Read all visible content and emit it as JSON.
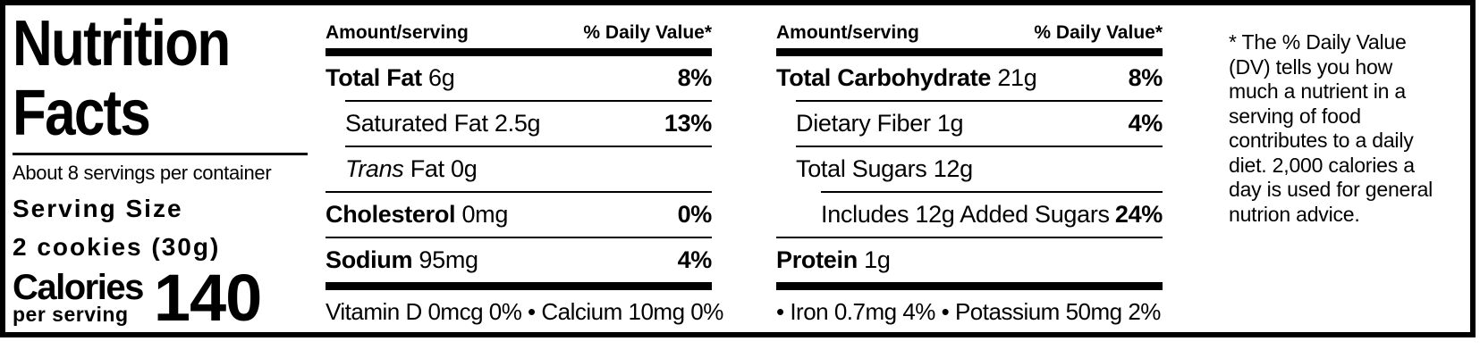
{
  "title": {
    "line1": "Nutrition",
    "line2": "Facts"
  },
  "left": {
    "servings_per_container": "About 8 servings per container",
    "serving_size_label": "Serving Size",
    "serving_size_value": "2 cookies (30g)",
    "calories_label": "Calories",
    "calories_sublabel": "per serving",
    "calories_value": "140"
  },
  "col1": {
    "header_amount": "Amount/serving",
    "header_dv": "% Daily Value*",
    "rows": {
      "total_fat": {
        "name": "Total Fat",
        "amount": "6g",
        "dv": "8%"
      },
      "saturated_fat": {
        "name": "Saturated Fat",
        "amount": "2.5g",
        "dv": "13%"
      },
      "trans_fat": {
        "name_italic": "Trans",
        "name": "Fat",
        "amount": "0g",
        "dv": ""
      },
      "cholesterol": {
        "name": "Cholesterol",
        "amount": "0mg",
        "dv": "0%"
      },
      "sodium": {
        "name": "Sodium",
        "amount": "95mg",
        "dv": "4%"
      }
    },
    "micronutrients": "Vitamin D 0mcg 0% • Calcium 10mg 0%"
  },
  "col2": {
    "header_amount": "Amount/serving",
    "header_dv": "% Daily Value*",
    "rows": {
      "total_carbohydrate": {
        "name": "Total Carbohydrate",
        "amount": "21g",
        "dv": "8%"
      },
      "dietary_fiber": {
        "name": "Dietary Fiber",
        "amount": "1g",
        "dv": "4%"
      },
      "total_sugars": {
        "name": "Total Sugars",
        "amount": "12g",
        "dv": ""
      },
      "added_sugars": {
        "name": "Includes 12g Added Sugars",
        "amount": "",
        "dv": "24%"
      },
      "protein": {
        "name": "Protein",
        "amount": "1g",
        "dv": ""
      }
    },
    "micronutrients": "• Iron 0.7mg 4% • Potassium 50mg 2%"
  },
  "footnote": {
    "lines": [
      "* The % Daily Value",
      "(DV) tells you how",
      "much a nutrient in a",
      "serving of food",
      "contributes to a daily",
      "diet. 2,000 calories a",
      "day is used for general",
      "nutrion advice."
    ]
  },
  "colors": {
    "ink": "#000000",
    "background": "#ffffff"
  }
}
